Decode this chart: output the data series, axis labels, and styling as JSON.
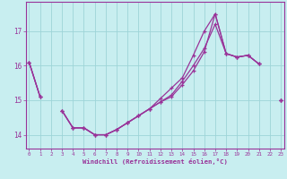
{
  "background_color": "#c8eef0",
  "grid_color": "#9dd4d8",
  "line_color": "#993399",
  "xlabel": "Windchill (Refroidissement éolien,°C)",
  "hours": [
    0,
    1,
    2,
    3,
    4,
    5,
    6,
    7,
    8,
    9,
    10,
    11,
    12,
    13,
    14,
    15,
    16,
    17,
    18,
    19,
    20,
    21,
    22,
    23
  ],
  "series": [
    [
      16.1,
      15.1,
      null,
      null,
      null,
      null,
      null,
      null,
      null,
      null,
      null,
      null,
      null,
      null,
      null,
      null,
      null,
      null,
      null,
      null,
      null,
      null,
      null,
      15.0
    ],
    [
      16.1,
      15.1,
      null,
      14.7,
      14.2,
      14.2,
      14.0,
      14.0,
      14.15,
      14.35,
      14.55,
      14.75,
      14.95,
      15.15,
      15.55,
      16.0,
      16.5,
      17.2,
      16.35,
      16.25,
      16.3,
      16.05,
      null,
      15.0
    ],
    [
      16.1,
      15.1,
      null,
      14.7,
      14.2,
      14.2,
      14.0,
      14.0,
      14.15,
      14.35,
      14.55,
      14.75,
      15.05,
      15.35,
      15.65,
      16.3,
      17.0,
      17.5,
      16.35,
      16.25,
      16.3,
      16.05,
      null,
      15.0
    ],
    [
      null,
      null,
      null,
      14.7,
      14.2,
      14.2,
      14.0,
      14.0,
      14.15,
      14.35,
      14.55,
      14.75,
      14.95,
      15.1,
      15.45,
      15.85,
      16.4,
      17.5,
      16.35,
      16.25,
      16.3,
      16.05,
      null,
      15.0
    ]
  ],
  "ylim": [
    13.6,
    17.85
  ],
  "xlim": [
    -0.3,
    23.3
  ],
  "yticks": [
    14,
    15,
    16,
    17
  ],
  "xticks": [
    0,
    1,
    2,
    3,
    4,
    5,
    6,
    7,
    8,
    9,
    10,
    11,
    12,
    13,
    14,
    15,
    16,
    17,
    18,
    19,
    20,
    21,
    22,
    23
  ]
}
